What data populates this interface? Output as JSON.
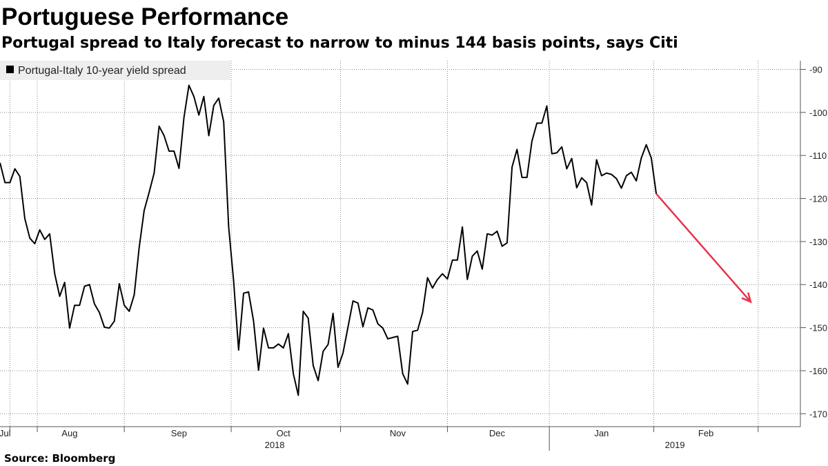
{
  "chart_data": {
    "type": "line",
    "title": "Portuguese Performance",
    "subtitle": "Portugal spread to Italy forecast to narrow to minus 144 basis points, says Citi",
    "source": "Source: Bloomberg",
    "categories": [
      null,
      "Jul",
      null,
      null,
      null,
      null,
      null,
      null,
      null,
      null,
      null,
      null,
      null,
      null,
      "Aug",
      null,
      null,
      null,
      null,
      null,
      null,
      null,
      null,
      null,
      null,
      null,
      null,
      null,
      null,
      null,
      null,
      null,
      null,
      null,
      null,
      null,
      "Sep",
      null,
      null,
      null,
      null,
      null,
      null,
      null,
      null,
      null,
      null,
      null,
      null,
      null,
      null,
      null,
      null,
      null,
      null,
      null,
      null,
      "Oct",
      null,
      null,
      null,
      null,
      null,
      null,
      null,
      null,
      null,
      null,
      null,
      null,
      null,
      null,
      null,
      null,
      null,
      null,
      null,
      null,
      null,
      null,
      "Nov",
      null,
      null,
      null,
      null,
      null,
      null,
      null,
      null,
      null,
      null,
      null,
      null,
      null,
      null,
      null,
      null,
      null,
      null,
      null,
      "Dec",
      null,
      null,
      null,
      null,
      null,
      null,
      null,
      null,
      null,
      null,
      null,
      null,
      null,
      null,
      null,
      null,
      null,
      null,
      null,
      null,
      "Jan",
      null,
      null,
      null,
      null,
      null,
      null,
      null,
      null,
      null,
      null,
      null,
      null,
      null,
      null,
      null,
      null,
      null,
      null,
      null,
      null,
      "Feb",
      null,
      null,
      null,
      null,
      null,
      null,
      null,
      null,
      null,
      null,
      null,
      null,
      null,
      null,
      null,
      null,
      null,
      null
    ],
    "year_labels": [
      "2018",
      "2019"
    ],
    "series": [
      {
        "name": "Portugal-Italy 10-year yield spread",
        "color": "#000000",
        "values": [
          -111.7,
          -116.3,
          -116.3,
          -113.1,
          -114.9,
          -124.7,
          -129.2,
          -130.5,
          -127.3,
          -129.5,
          -128.2,
          -137.5,
          -142.7,
          -139.5,
          -150.1,
          -144.8,
          -144.8,
          -140.4,
          -140,
          -144.5,
          -146.5,
          -149.9,
          -150.1,
          -148.5,
          -139.8,
          -144.8,
          -146.2,
          -142.4,
          -131.4,
          -122.8,
          -118.6,
          -114.1,
          -103.2,
          -105.4,
          -109,
          -109,
          -113,
          -101.2,
          -93.7,
          -96.3,
          -100.6,
          -96.3,
          -105.4,
          -98.4,
          -96.7,
          -102.2,
          -126.6,
          -139.2,
          -155.2,
          -142,
          -141.7,
          -148.5,
          -159.9,
          -150.1,
          -154.7,
          -154.7,
          -153.8,
          -154.7,
          -151.4,
          -160.7,
          -165.7,
          -146.2,
          -147.8,
          -158.8,
          -162.3,
          -155.5,
          -153.9,
          -146.7,
          -159.2,
          -155.9,
          -149.9,
          -143.8,
          -144.3,
          -149.8,
          -145.4,
          -145.9,
          -149.1,
          -150.1,
          -152.6,
          -152.3,
          -152,
          -160.7,
          -163.1,
          -150.9,
          -150.6,
          -146.5,
          -138.4,
          -140.8,
          -138.8,
          -137.5,
          -138.7,
          -134.3,
          -134.3,
          -126.6,
          -138.8,
          -133.4,
          -132.2,
          -136.4,
          -128.2,
          -128.5,
          -127.6,
          -131.1,
          -130.3,
          -112.7,
          -108.6,
          -115.1,
          -115.1,
          -106.7,
          -102.5,
          -102.5,
          -98.5,
          -109.6,
          -109.4,
          -108,
          -113.1,
          -110.7,
          -117.5,
          -115.2,
          -116.3,
          -121.5,
          -111,
          -114.7,
          -114.1,
          -114.4,
          -115.4,
          -117.6,
          -114.7,
          -113.9,
          -115.9,
          -110.6,
          -107.5,
          -110.6,
          -118.9,
          null,
          null,
          null,
          null,
          null,
          null,
          null,
          null,
          null,
          null,
          null,
          null,
          null,
          null,
          null,
          null,
          null,
          null,
          null,
          null,
          null,
          null,
          null,
          null,
          null,
          null,
          null,
          null
        ]
      }
    ],
    "forecast": {
      "color": "#e8334a",
      "values": [
        null,
        null,
        null,
        null,
        null,
        null,
        null,
        null,
        null,
        null,
        null,
        null,
        null,
        null,
        null,
        null,
        null,
        null,
        null,
        null,
        null,
        null,
        null,
        null,
        null,
        null,
        null,
        null,
        null,
        null,
        null,
        null,
        null,
        null,
        null,
        null,
        null,
        null,
        null,
        null,
        null,
        null,
        null,
        null,
        null,
        null,
        null,
        null,
        null,
        null,
        null,
        null,
        null,
        null,
        null,
        null,
        null,
        null,
        null,
        null,
        null,
        null,
        null,
        null,
        null,
        null,
        null,
        null,
        null,
        null,
        null,
        null,
        null,
        null,
        null,
        null,
        null,
        null,
        null,
        null,
        null,
        null,
        null,
        null,
        null,
        null,
        null,
        null,
        null,
        null,
        null,
        null,
        null,
        null,
        null,
        null,
        null,
        null,
        null,
        null,
        null,
        null,
        null,
        null,
        null,
        null,
        null,
        null,
        null,
        null,
        null,
        null,
        null,
        null,
        null,
        null,
        null,
        null,
        null,
        null,
        null,
        null,
        null,
        null,
        null,
        null,
        null,
        null,
        null,
        null,
        null,
        null,
        null,
        null,
        null,
        null,
        null,
        null,
        null,
        null,
        null,
        null,
        null,
        null,
        null,
        null,
        null,
        null,
        null,
        null,
        null,
        -144,
        null,
        null,
        null,
        null,
        null,
        null,
        null,
        null,
        null
      ]
    },
    "ylim": [
      -173,
      -88
    ],
    "yticks": [
      -90,
      -100,
      -110,
      -120,
      -130,
      -140,
      -150,
      -160,
      -170
    ],
    "grid": true
  }
}
